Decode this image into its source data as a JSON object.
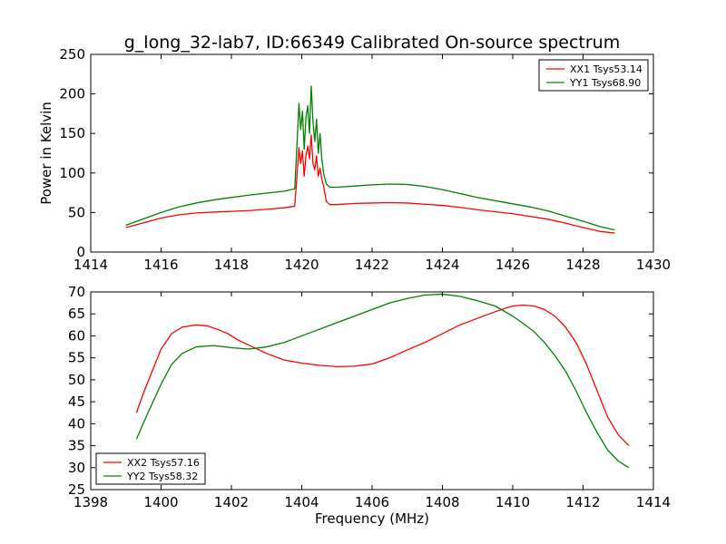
{
  "figure": {
    "title": "g_long_32-lab7, ID:66349 Calibrated On-source spectrum"
  },
  "chart_data": [
    {
      "type": "line",
      "title": "g_long_32-lab7, ID:66349 Calibrated On-source spectrum",
      "xlabel": "",
      "ylabel": "Power in Kelvin",
      "xlim": [
        1414,
        1430
      ],
      "ylim": [
        0,
        250
      ],
      "xticks": [
        "1414",
        "1416",
        "1418",
        "1420",
        "1422",
        "1424",
        "1426",
        "1428",
        "1430"
      ],
      "yticks": [
        "0",
        "50",
        "100",
        "150",
        "200",
        "250"
      ],
      "grid": false,
      "legend_position": "top-right",
      "series": [
        {
          "name": "XX1 Tsys53.14",
          "color": "#ff0000",
          "x": [
            1415.0,
            1415.5,
            1416.0,
            1416.5,
            1417.0,
            1417.5,
            1418.0,
            1418.5,
            1419.0,
            1419.5,
            1419.8,
            1419.87,
            1419.92,
            1419.97,
            1420.02,
            1420.07,
            1420.12,
            1420.17,
            1420.22,
            1420.27,
            1420.32,
            1420.37,
            1420.42,
            1420.47,
            1420.52,
            1420.57,
            1420.62,
            1420.7,
            1420.8,
            1421.0,
            1421.5,
            1422.0,
            1422.5,
            1423.0,
            1423.5,
            1424.0,
            1424.5,
            1425.0,
            1425.5,
            1426.0,
            1426.5,
            1427.0,
            1427.5,
            1428.0,
            1428.5,
            1428.9
          ],
          "y": [
            31,
            37,
            43,
            47,
            49.5,
            50.5,
            51.5,
            52.5,
            54,
            56,
            58,
            100,
            132,
            112,
            128,
            96,
            122,
            134,
            118,
            148,
            112,
            104,
            122,
            96,
            106,
            92,
            84,
            64,
            60,
            60,
            61.5,
            62,
            62.5,
            62,
            60.5,
            59,
            56.5,
            53.5,
            51,
            48.5,
            45,
            41.5,
            36.5,
            31,
            26,
            24
          ]
        },
        {
          "name": "YY1 Tsys68.90",
          "color": "#008000",
          "x": [
            1415.0,
            1415.5,
            1416.0,
            1416.5,
            1417.0,
            1417.5,
            1418.0,
            1418.5,
            1419.0,
            1419.5,
            1419.8,
            1419.87,
            1419.92,
            1419.97,
            1420.02,
            1420.07,
            1420.12,
            1420.17,
            1420.22,
            1420.27,
            1420.32,
            1420.37,
            1420.42,
            1420.47,
            1420.52,
            1420.57,
            1420.62,
            1420.7,
            1420.8,
            1421.0,
            1421.5,
            1422.0,
            1422.5,
            1423.0,
            1423.5,
            1424.0,
            1424.5,
            1425.0,
            1425.5,
            1426.0,
            1426.5,
            1427.0,
            1427.5,
            1428.0,
            1428.5,
            1428.9
          ],
          "y": [
            34,
            42,
            50,
            57,
            62,
            66,
            69,
            72,
            74.5,
            77,
            80,
            140,
            188,
            155,
            178,
            130,
            170,
            185,
            150,
            210,
            165,
            140,
            168,
            125,
            150,
            118,
            100,
            86,
            82,
            82,
            83.5,
            85,
            86,
            85.5,
            83,
            79,
            74,
            69,
            65,
            61,
            57,
            52,
            45.5,
            39,
            32,
            28
          ]
        }
      ]
    },
    {
      "type": "line",
      "title": "",
      "xlabel": "Frequency (MHz)",
      "ylabel": "",
      "xlim": [
        1398,
        1414
      ],
      "ylim": [
        25,
        70
      ],
      "xticks": [
        "1398",
        "1400",
        "1402",
        "1404",
        "1406",
        "1408",
        "1410",
        "1412",
        "1414"
      ],
      "yticks": [
        "25",
        "30",
        "35",
        "40",
        "45",
        "50",
        "55",
        "60",
        "65",
        "70"
      ],
      "grid": false,
      "legend_position": "bottom-left",
      "series": [
        {
          "name": "XX2 Tsys57.16",
          "color": "#ff0000",
          "x": [
            1399.3,
            1399.5,
            1399.8,
            1400.0,
            1400.3,
            1400.6,
            1401.0,
            1401.3,
            1401.6,
            1401.9,
            1402.2,
            1402.6,
            1403.0,
            1403.5,
            1404.0,
            1404.5,
            1405.0,
            1405.5,
            1406.0,
            1406.5,
            1407.0,
            1407.5,
            1408.0,
            1408.5,
            1409.0,
            1409.5,
            1409.8,
            1410.0,
            1410.3,
            1410.6,
            1410.9,
            1411.2,
            1411.5,
            1411.8,
            1412.1,
            1412.4,
            1412.7,
            1413.0,
            1413.3
          ],
          "y": [
            42.5,
            47,
            53,
            57,
            60.5,
            62,
            62.5,
            62.3,
            61.5,
            60.5,
            59,
            57.5,
            56,
            54.5,
            53.8,
            53.3,
            53,
            53.1,
            53.6,
            55,
            56.8,
            58.5,
            60.5,
            62.5,
            64,
            65.5,
            66.3,
            66.8,
            67,
            66.8,
            66,
            64.5,
            62,
            58.5,
            53.5,
            47.5,
            41.5,
            37.5,
            35
          ]
        },
        {
          "name": "YY2 Tsys58.32",
          "color": "#008000",
          "x": [
            1399.3,
            1399.6,
            1400.0,
            1400.3,
            1400.6,
            1401.0,
            1401.5,
            1402.0,
            1402.5,
            1403.0,
            1403.5,
            1404.0,
            1404.5,
            1405.0,
            1405.5,
            1406.0,
            1406.5,
            1407.0,
            1407.5,
            1408.0,
            1408.5,
            1409.0,
            1409.5,
            1410.0,
            1410.3,
            1410.6,
            1410.9,
            1411.2,
            1411.5,
            1411.8,
            1412.1,
            1412.4,
            1412.7,
            1413.0,
            1413.3
          ],
          "y": [
            36.5,
            42,
            49,
            53.5,
            56,
            57.5,
            57.8,
            57.3,
            57,
            57.5,
            58.5,
            60,
            61.5,
            63,
            64.5,
            66,
            67.5,
            68.5,
            69.3,
            69.5,
            69,
            68,
            66.8,
            64.5,
            62.8,
            61,
            58.5,
            55.5,
            52,
            47.5,
            42.5,
            38,
            34,
            31.5,
            30
          ]
        }
      ]
    }
  ]
}
